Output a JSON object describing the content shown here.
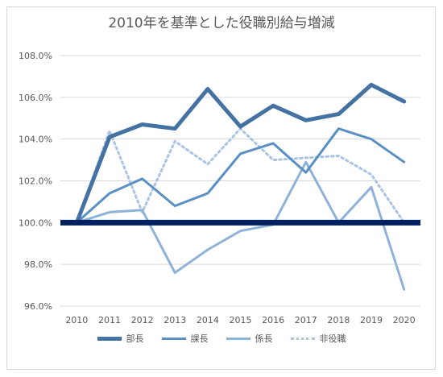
{
  "chart_data": {
    "type": "line",
    "title": "2010年を基準とした役職別給与増減",
    "xlabel": "",
    "ylabel": "",
    "categories": [
      "2010",
      "2011",
      "2012",
      "2013",
      "2014",
      "2015",
      "2016",
      "2017",
      "2018",
      "2019",
      "2020"
    ],
    "ylim": [
      96.0,
      108.0
    ],
    "yticks": [
      "96.0%",
      "98.0%",
      "100.0%",
      "102.0%",
      "104.0%",
      "106.0%",
      "108.0%"
    ],
    "ytick_values": [
      96,
      98,
      100,
      102,
      104,
      106,
      108
    ],
    "grid": true,
    "legend_position": "bottom",
    "reference_line": 100.0,
    "reference_color": "#002060",
    "series": [
      {
        "name": "部長",
        "color": "#4472a2",
        "style": "solid",
        "weight": "thick",
        "values": [
          100.0,
          104.1,
          104.7,
          104.5,
          106.4,
          104.6,
          105.6,
          104.9,
          105.2,
          106.6,
          105.8
        ]
      },
      {
        "name": "課長",
        "color": "#5a8fc4",
        "style": "solid",
        "weight": "medium",
        "values": [
          100.0,
          101.4,
          102.1,
          100.8,
          101.4,
          103.3,
          103.8,
          102.4,
          104.5,
          104.0,
          102.9
        ]
      },
      {
        "name": "係長",
        "color": "#8fb2d8",
        "style": "solid",
        "weight": "medium",
        "values": [
          100.0,
          100.5,
          100.6,
          97.6,
          98.7,
          99.6,
          99.9,
          102.9,
          100.0,
          101.7,
          96.8
        ]
      },
      {
        "name": "非役職",
        "color": "#a9c4e4",
        "style": "dotted",
        "weight": "medium",
        "values": [
          100.0,
          104.4,
          100.5,
          103.9,
          102.8,
          104.5,
          103.0,
          103.1,
          103.2,
          102.3,
          100.0
        ]
      }
    ]
  }
}
